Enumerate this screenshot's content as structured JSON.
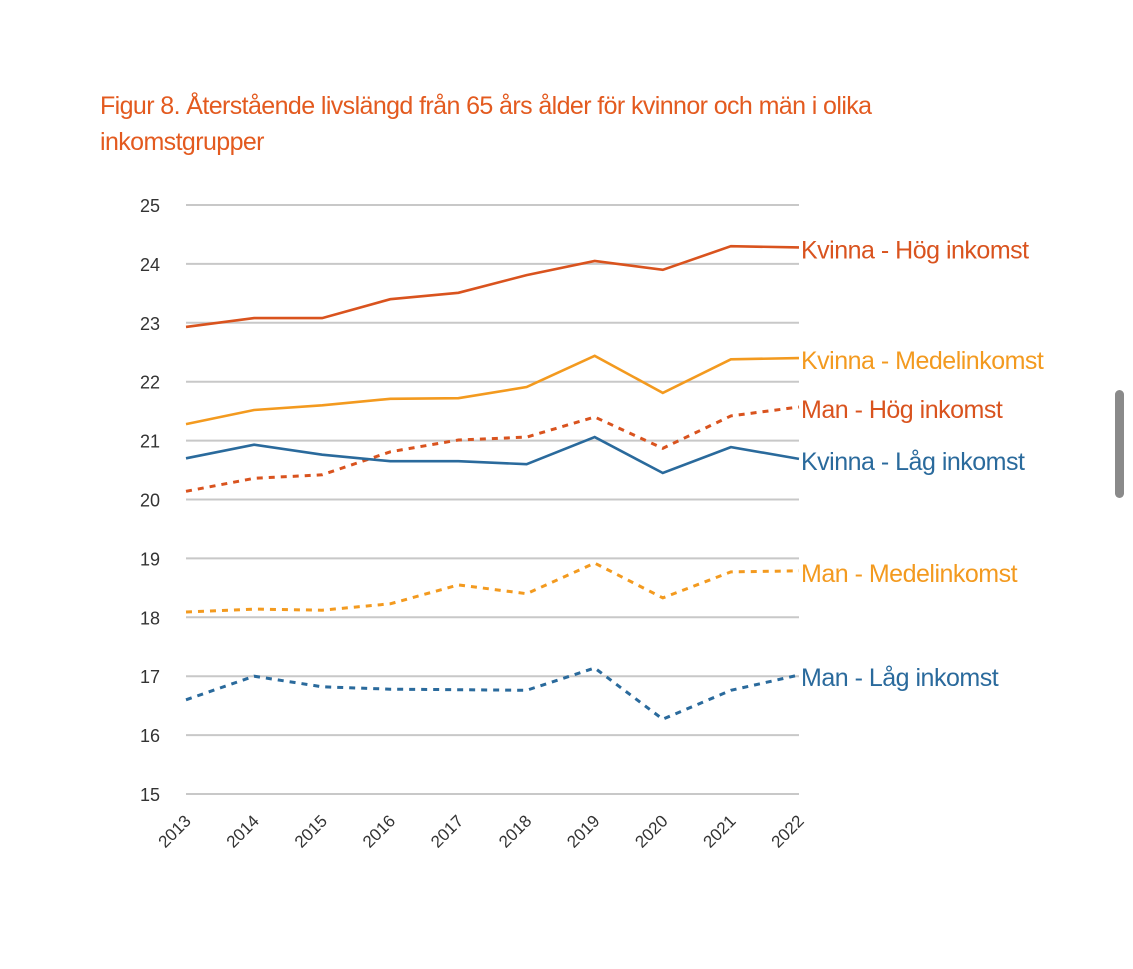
{
  "figure": {
    "title_line1": "Figur 8. Återstående livslängd från 65 års ålder för kvinnor och män i olika",
    "title_line2": "inkomstgrupper"
  },
  "colors": {
    "title": "#e35a1f",
    "dark_orange": "#d9531e",
    "light_orange": "#f39a1f",
    "blue": "#2a6a9c",
    "grid": "#c8c8c8",
    "tick_text": "#333333"
  },
  "chart_data": {
    "type": "line",
    "title": "Figur 8. Återstående livslängd från 65 års ålder för kvinnor och män i olika inkomstgrupper",
    "xlabel": "",
    "ylabel": "",
    "x": [
      "2013",
      "2014",
      "2015",
      "2016",
      "2017",
      "2018",
      "2019",
      "2020",
      "2021",
      "2022"
    ],
    "ylim": [
      15,
      25
    ],
    "yticks": [
      "25",
      "24",
      "23",
      "22",
      "21",
      "20",
      "19",
      "18",
      "17",
      "16",
      "15"
    ],
    "grid": true,
    "legend_placement": "right (inline labels at line ends)",
    "series": [
      {
        "name": "Kvinna - Hög inkomst",
        "color": "#d9531e",
        "style": "solid",
        "values": [
          22.93,
          23.08,
          23.08,
          23.4,
          23.51,
          23.81,
          24.05,
          23.9,
          24.3,
          24.28
        ]
      },
      {
        "name": "Kvinna - Medelinkomst",
        "color": "#f39a1f",
        "style": "solid",
        "values": [
          21.28,
          21.52,
          21.6,
          21.71,
          21.72,
          21.91,
          22.44,
          21.81,
          22.38,
          22.4
        ]
      },
      {
        "name": "Man - Hög inkomst",
        "color": "#d9531e",
        "style": "dotted",
        "values": [
          20.14,
          20.36,
          20.42,
          20.81,
          21.01,
          21.06,
          21.4,
          20.87,
          21.42,
          21.57
        ]
      },
      {
        "name": "Kvinna - Låg inkomst",
        "color": "#2a6a9c",
        "style": "solid",
        "values": [
          20.7,
          20.93,
          20.76,
          20.65,
          20.65,
          20.6,
          21.06,
          20.45,
          20.89,
          20.69
        ]
      },
      {
        "name": "Man - Medelinkomst",
        "color": "#f39a1f",
        "style": "dotted",
        "values": [
          18.09,
          18.14,
          18.12,
          18.23,
          18.55,
          18.4,
          18.92,
          18.33,
          18.77,
          18.79
        ]
      },
      {
        "name": "Man - Låg inkomst",
        "color": "#2a6a9c",
        "style": "dotted",
        "values": [
          16.6,
          17.0,
          16.82,
          16.78,
          16.77,
          16.76,
          17.14,
          16.27,
          16.76,
          17.02
        ]
      }
    ]
  },
  "scrollbar": {
    "label": "page-scrollbar"
  }
}
